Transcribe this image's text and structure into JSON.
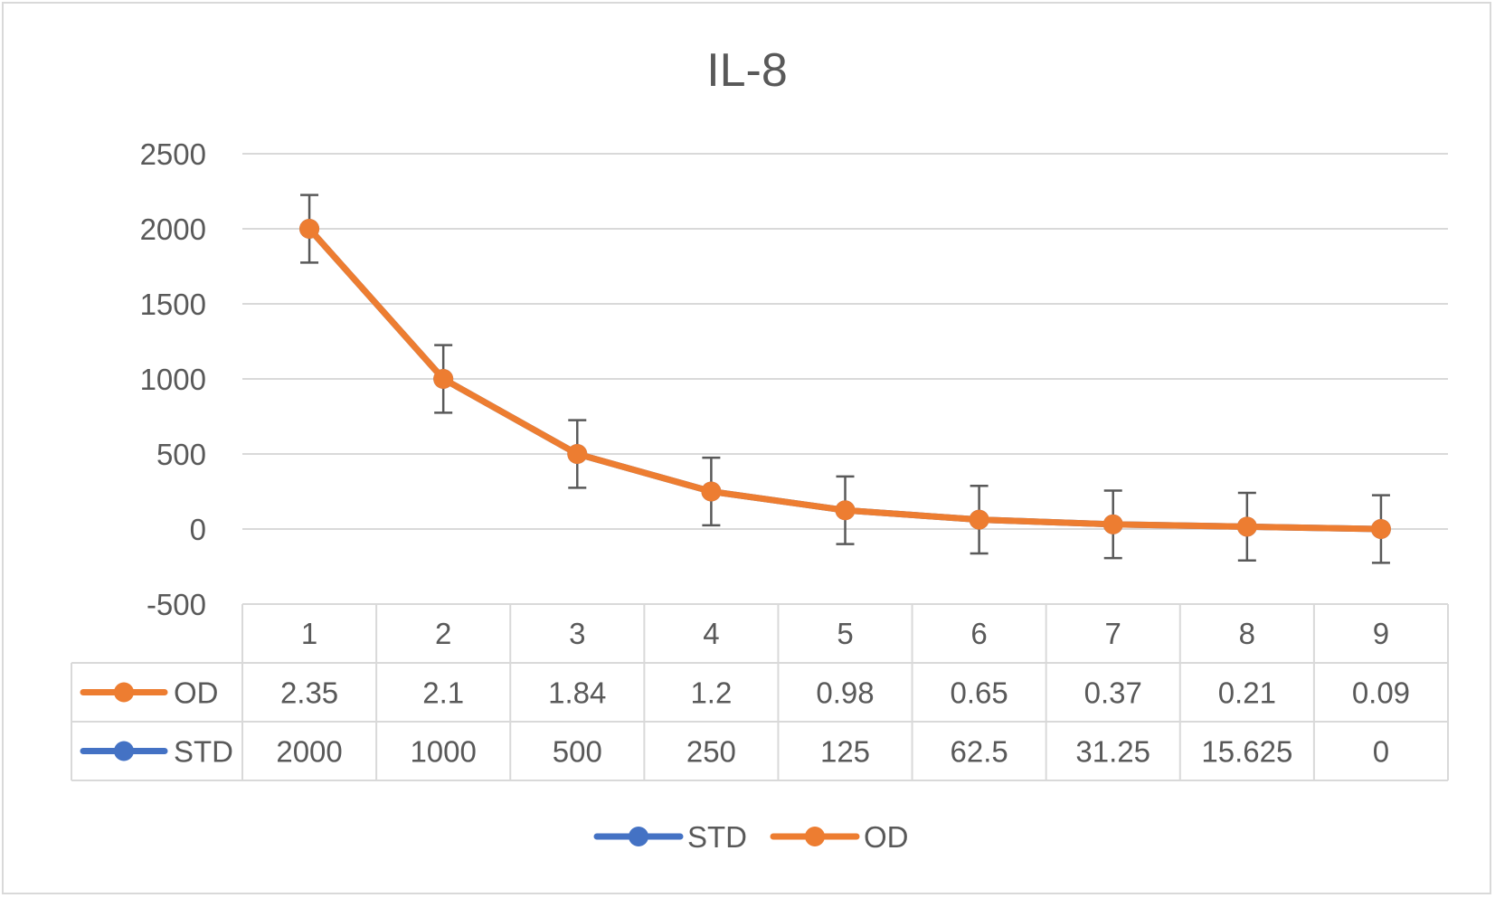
{
  "chart_data": {
    "type": "line",
    "title": "IL-8",
    "categories": [
      "1",
      "2",
      "3",
      "4",
      "5",
      "6",
      "7",
      "8",
      "9"
    ],
    "ylim": [
      -500,
      2500
    ],
    "yticks": [
      2500,
      2000,
      1500,
      1000,
      500,
      0,
      -500
    ],
    "grid": true,
    "legend": "bottom",
    "error_bars": true,
    "series": [
      {
        "name": "STD",
        "color": "#4472c4",
        "values": [
          2000,
          1000,
          500,
          250,
          125,
          62.5,
          31.25,
          15.625,
          0
        ],
        "labels": [
          "2000",
          "1000",
          "500",
          "250",
          "125",
          "62.5",
          "31.25",
          "15.625",
          "0"
        ]
      },
      {
        "name": "OD",
        "color": "#ed7d31",
        "values": [
          2.35,
          2.1,
          1.84,
          1.2,
          0.98,
          0.65,
          0.37,
          0.21,
          0.09
        ],
        "labels": [
          "2.35",
          "2.1",
          "1.84",
          "1.2",
          "0.98",
          "0.65",
          "0.37",
          "0.21",
          "0.09"
        ]
      }
    ]
  }
}
